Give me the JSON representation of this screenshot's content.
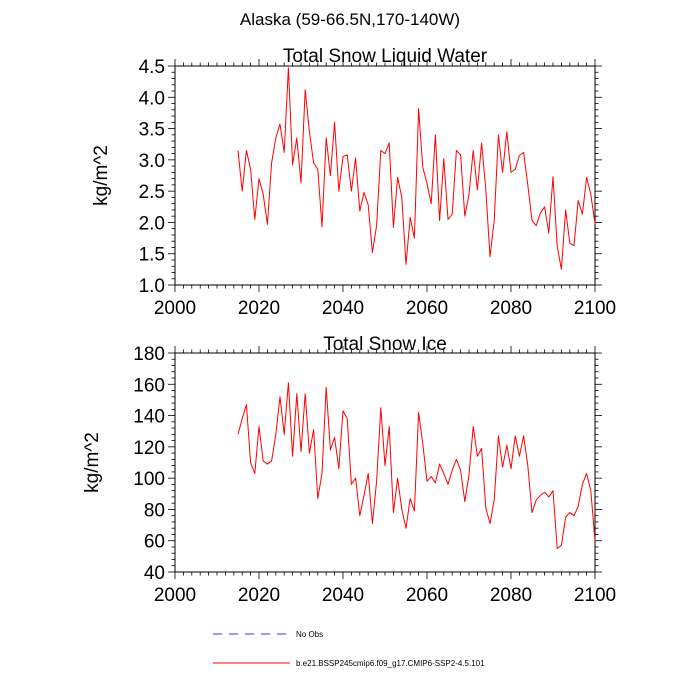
{
  "figure_title": "Alaska (59-66.5N,170-140W)",
  "colors": {
    "series": "#ff0000",
    "obs": "#3a3ad0",
    "axis": "#000000"
  },
  "legend": {
    "obs_label": "No Obs",
    "model_label": "b.e21.BSSP245cmip6.f09_g17.CMIP6-SSP2-4.5.101"
  },
  "chart_data": [
    {
      "type": "line",
      "title": "Total Snow Liquid Water",
      "xlabel": "",
      "ylabel": "kg/m^2",
      "xlim": [
        2000,
        2100
      ],
      "ylim": [
        1.0,
        4.5
      ],
      "xticks": [
        2000,
        2020,
        2040,
        2060,
        2080,
        2100
      ],
      "yticks": [
        "1.0",
        "1.5",
        "2.0",
        "2.5",
        "3.0",
        "3.5",
        "4.0",
        "4.5"
      ],
      "series": [
        {
          "name": "b.e21.BSSP245cmip6.f09_g17.CMIP6-SSP2-4.5.101",
          "x": [
            2015,
            2016,
            2017,
            2018,
            2019,
            2020,
            2021,
            2022,
            2023,
            2024,
            2025,
            2026,
            2027,
            2028,
            2029,
            2030,
            2031,
            2032,
            2033,
            2034,
            2035,
            2036,
            2037,
            2038,
            2039,
            2040,
            2041,
            2042,
            2043,
            2044,
            2045,
            2046,
            2047,
            2048,
            2049,
            2050,
            2051,
            2052,
            2053,
            2054,
            2055,
            2056,
            2057,
            2058,
            2059,
            2060,
            2061,
            2062,
            2063,
            2064,
            2065,
            2066,
            2067,
            2068,
            2069,
            2070,
            2071,
            2072,
            2073,
            2074,
            2075,
            2076,
            2077,
            2078,
            2079,
            2080,
            2081,
            2082,
            2083,
            2084,
            2085,
            2086,
            2087,
            2088,
            2089,
            2090,
            2091,
            2092,
            2093,
            2094,
            2095,
            2096,
            2097,
            2098,
            2099,
            2100
          ],
          "y": [
            3.15,
            2.5,
            3.15,
            2.85,
            2.05,
            2.7,
            2.45,
            1.97,
            2.95,
            3.35,
            3.57,
            3.12,
            4.47,
            2.92,
            3.35,
            2.63,
            4.12,
            3.45,
            2.95,
            2.85,
            1.93,
            3.35,
            2.75,
            3.6,
            2.5,
            3.05,
            3.08,
            2.5,
            3.03,
            2.18,
            2.48,
            2.28,
            1.52,
            1.95,
            3.15,
            3.1,
            3.27,
            1.92,
            2.72,
            2.4,
            1.33,
            2.08,
            1.75,
            3.82,
            2.88,
            2.62,
            2.3,
            3.4,
            2.03,
            3.02,
            2.05,
            2.13,
            3.15,
            3.08,
            2.1,
            2.45,
            3.15,
            2.52,
            3.27,
            2.53,
            1.45,
            2.03,
            3.4,
            2.8,
            3.45,
            2.8,
            2.85,
            3.07,
            3.12,
            2.6,
            2.03,
            1.95,
            2.15,
            2.25,
            1.83,
            2.73,
            1.62,
            1.25,
            2.2,
            1.67,
            1.63,
            2.35,
            2.13,
            2.72,
            2.45,
            1.98
          ]
        }
      ]
    },
    {
      "type": "line",
      "title": "Total Snow Ice",
      "xlabel": "",
      "ylabel": "kg/m^2",
      "xlim": [
        2000,
        2100
      ],
      "ylim": [
        40,
        180
      ],
      "xticks": [
        2000,
        2020,
        2040,
        2060,
        2080,
        2100
      ],
      "yticks": [
        "40",
        "60",
        "80",
        "100",
        "120",
        "140",
        "160",
        "180"
      ],
      "series": [
        {
          "name": "b.e21.BSSP245cmip6.f09_g17.CMIP6-SSP2-4.5.101",
          "x": [
            2015,
            2016,
            2017,
            2018,
            2019,
            2020,
            2021,
            2022,
            2023,
            2024,
            2025,
            2026,
            2027,
            2028,
            2029,
            2030,
            2031,
            2032,
            2033,
            2034,
            2035,
            2036,
            2037,
            2038,
            2039,
            2040,
            2041,
            2042,
            2043,
            2044,
            2045,
            2046,
            2047,
            2048,
            2049,
            2050,
            2051,
            2052,
            2053,
            2054,
            2055,
            2056,
            2057,
            2058,
            2059,
            2060,
            2061,
            2062,
            2063,
            2064,
            2065,
            2066,
            2067,
            2068,
            2069,
            2070,
            2071,
            2072,
            2073,
            2074,
            2075,
            2076,
            2077,
            2078,
            2079,
            2080,
            2081,
            2082,
            2083,
            2084,
            2085,
            2086,
            2087,
            2088,
            2089,
            2090,
            2091,
            2092,
            2093,
            2094,
            2095,
            2096,
            2097,
            2098,
            2099,
            2100
          ],
          "y": [
            128,
            138,
            147,
            110,
            103,
            133,
            111,
            109,
            111,
            128,
            152,
            128,
            161,
            114,
            154,
            117,
            154,
            116,
            131,
            87,
            103,
            158,
            118,
            126,
            106,
            143,
            138,
            96,
            100,
            76,
            89,
            103,
            71,
            98,
            145,
            108,
            133,
            78,
            100,
            80,
            68,
            87,
            79,
            142,
            122,
            98,
            101,
            97,
            109,
            103,
            96,
            105,
            112,
            105,
            85,
            102,
            133,
            114,
            119,
            81,
            71,
            86,
            127,
            107,
            121,
            106,
            127,
            114,
            127,
            108,
            78,
            86,
            89,
            91,
            88,
            92,
            55,
            57,
            75,
            78,
            76,
            82,
            96,
            103,
            92,
            60
          ]
        }
      ]
    }
  ]
}
